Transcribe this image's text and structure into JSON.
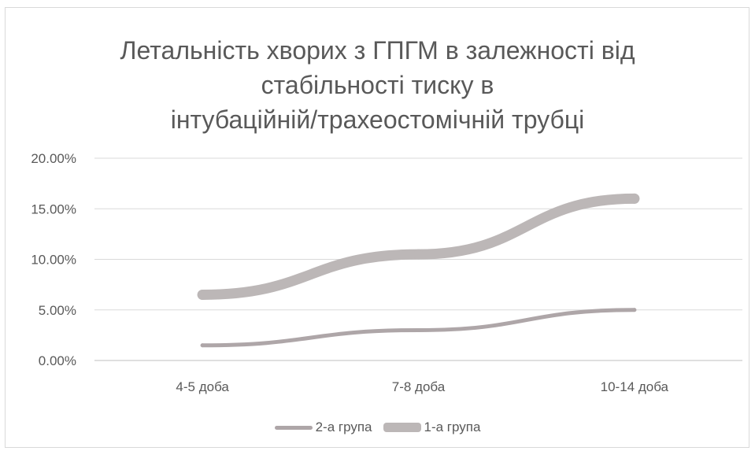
{
  "chart_data": {
    "type": "line",
    "title_lines": [
      "Летальність хворих з ГПГМ в залежності від",
      "стабільності тиску в",
      "інтубаційній/трахеостомічній трубці"
    ],
    "categories": [
      "4-5 доба",
      "7-8 доба",
      "10-14 доба"
    ],
    "y_ticks": [
      "0.00%",
      "5.00%",
      "10.00%",
      "15.00%",
      "20.00%"
    ],
    "ylim": [
      0,
      20
    ],
    "grid": true,
    "legend_position": "bottom",
    "series": [
      {
        "name": "2-а група",
        "values": [
          1.5,
          3.0,
          5.0
        ],
        "color": "#aea6a8",
        "style": "thin"
      },
      {
        "name": "1-а група",
        "values": [
          6.5,
          10.5,
          16.0
        ],
        "color": "#bcb7b7",
        "style": "thick"
      }
    ]
  }
}
